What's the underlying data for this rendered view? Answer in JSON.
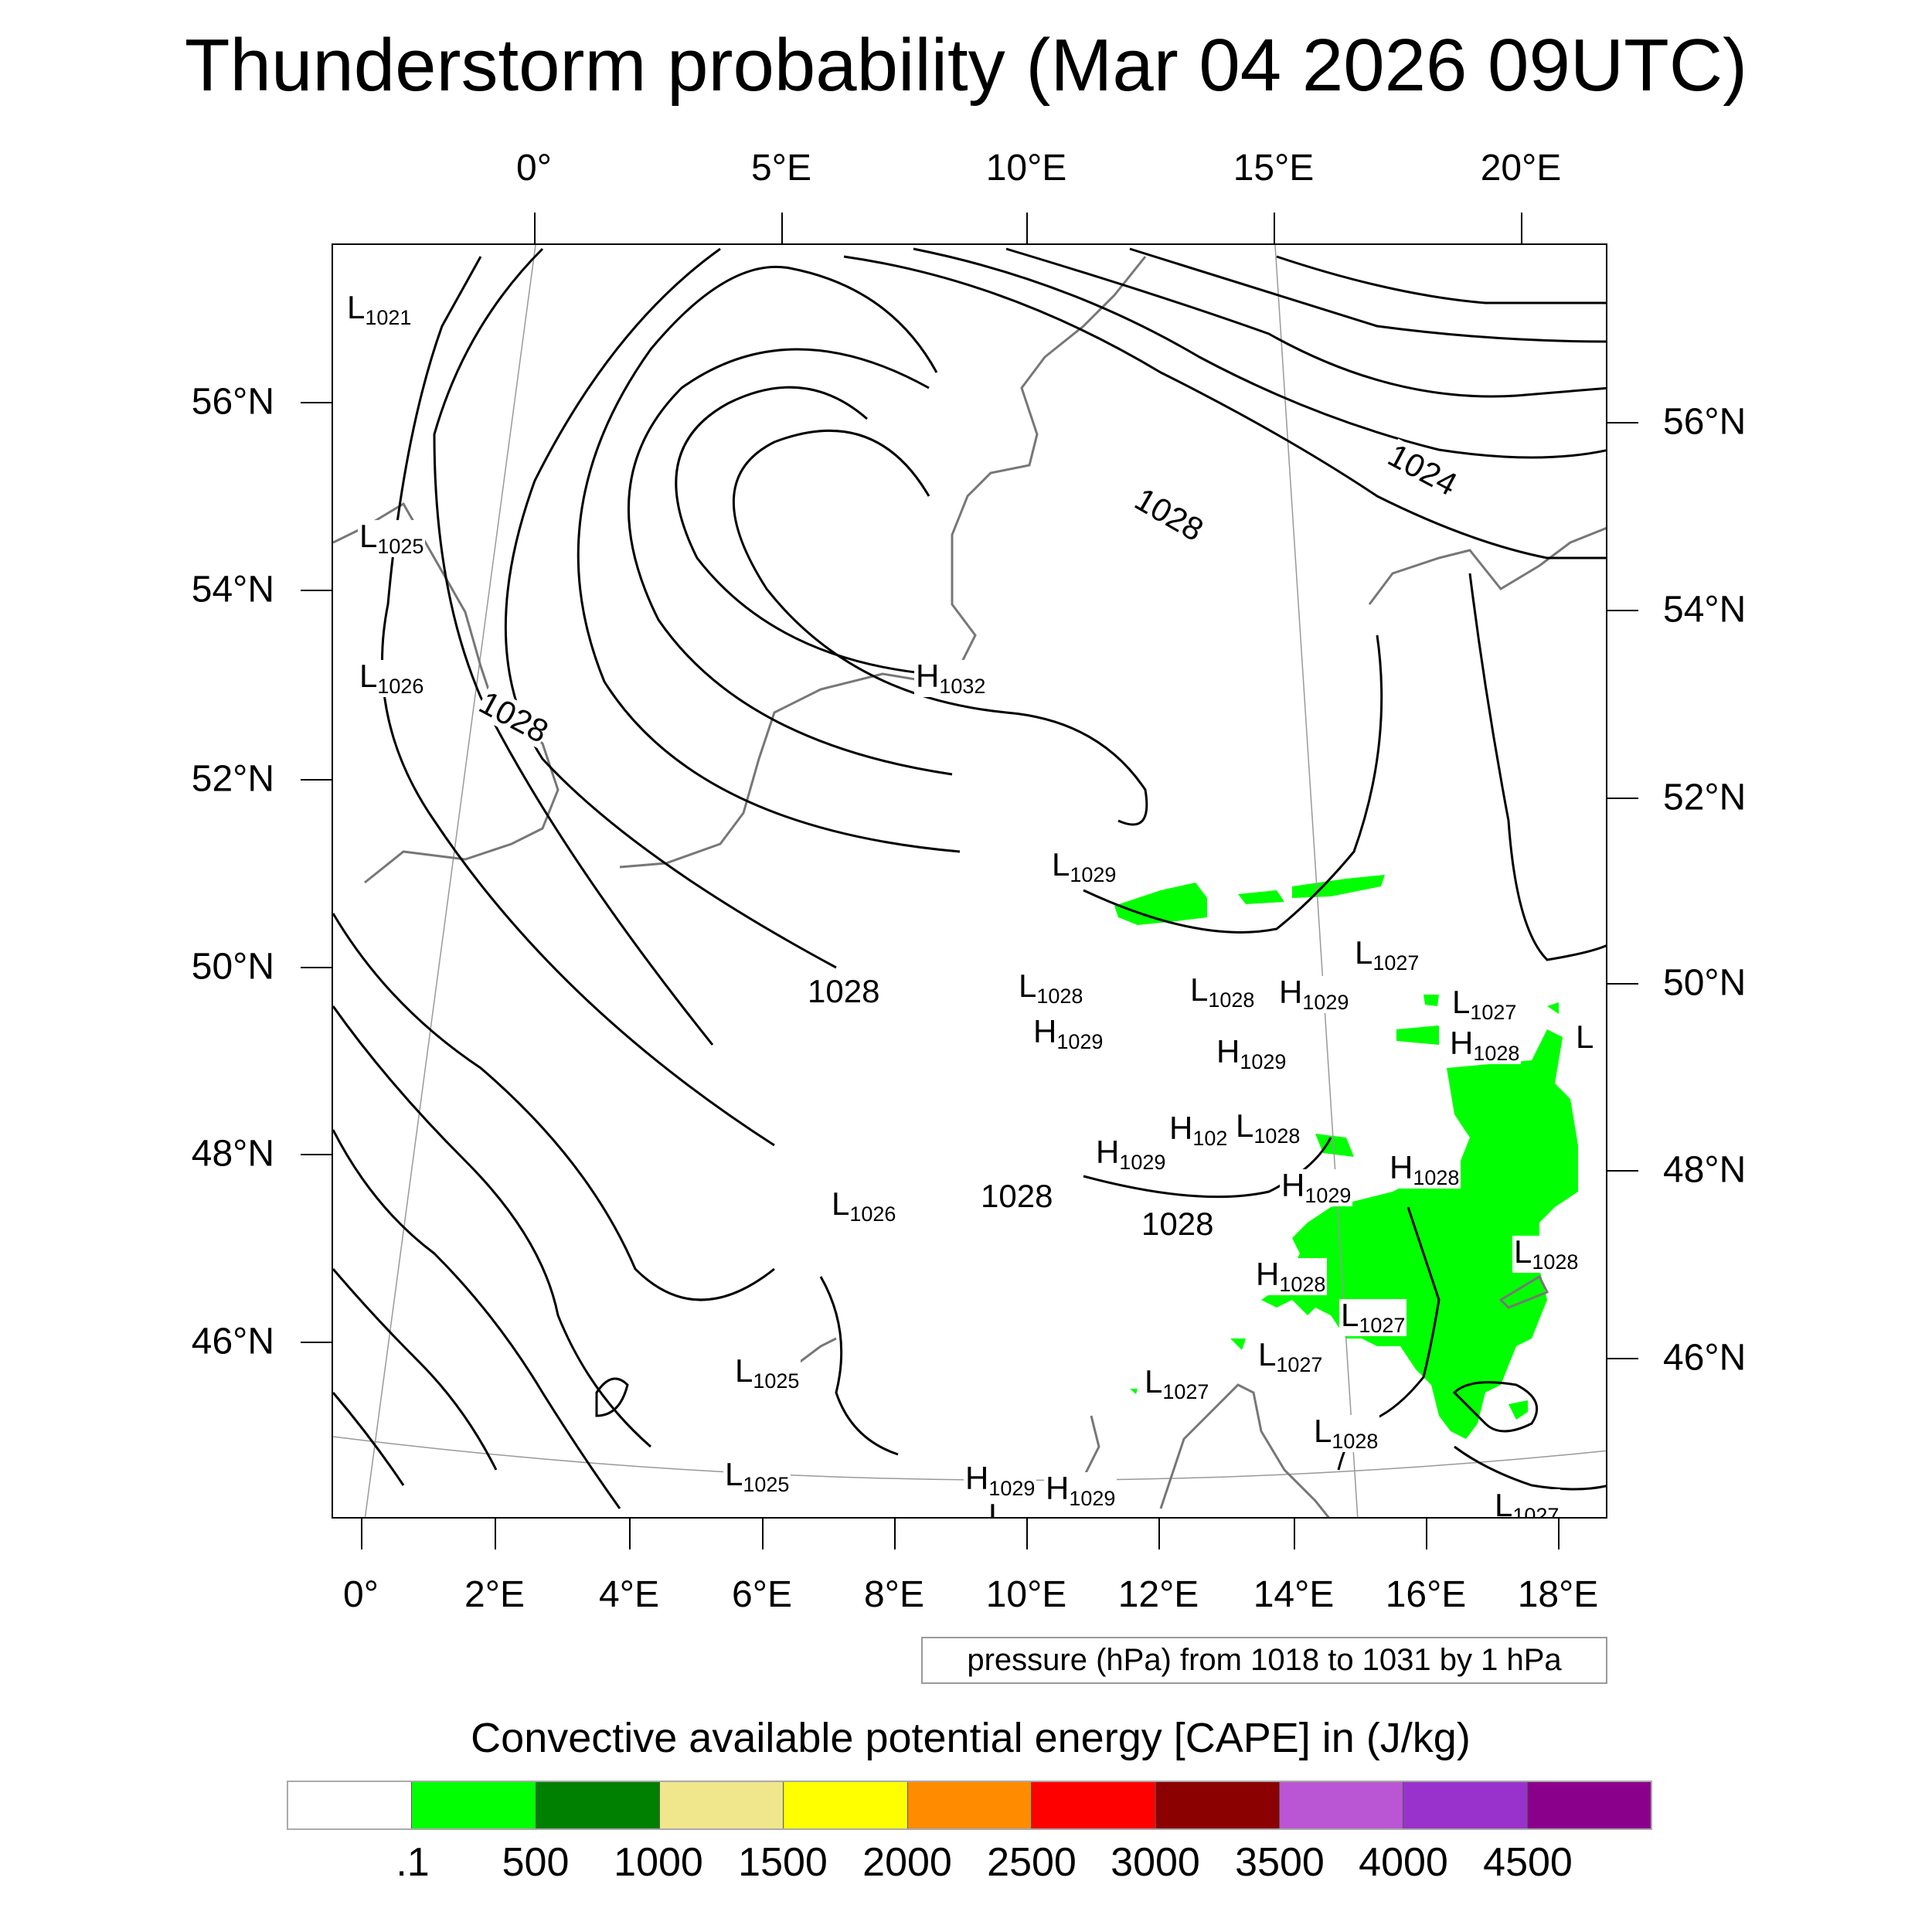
{
  "title": "Thunderstorm probability (Mar 04 2026 09UTC)",
  "top_lon_labels": [
    "0°",
    "5°E",
    "10°E",
    "15°E",
    "20°E"
  ],
  "bottom_lon_labels": [
    "0°",
    "2°E",
    "4°E",
    "6°E",
    "8°E",
    "10°E",
    "12°E",
    "14°E",
    "16°E",
    "18°E"
  ],
  "left_lat_labels": [
    "56°N",
    "54°N",
    "52°N",
    "50°N",
    "48°N",
    "46°N"
  ],
  "right_lat_labels": [
    "56°N",
    "54°N",
    "52°N",
    "50°N",
    "48°N",
    "46°N"
  ],
  "pressure_centers": [
    {
      "type": "L",
      "value": "1021"
    },
    {
      "type": "L",
      "value": "1025"
    },
    {
      "type": "L",
      "value": "1026"
    },
    {
      "type": "H",
      "value": "1032"
    },
    {
      "type": "L",
      "value": "1029"
    },
    {
      "type": "L",
      "value": "1027"
    },
    {
      "type": "L",
      "value": "1028"
    },
    {
      "type": "L",
      "value": "1028"
    },
    {
      "type": "H",
      "value": "1029"
    },
    {
      "type": "L",
      "value": "1027"
    },
    {
      "type": "H",
      "value": "1029"
    },
    {
      "type": "H",
      "value": "1029"
    },
    {
      "type": "H",
      "value": "1028"
    },
    {
      "type": "L",
      "value": ""
    },
    {
      "type": "H",
      "value": "102"
    },
    {
      "type": "L",
      "value": "1028"
    },
    {
      "type": "H",
      "value": "1029"
    },
    {
      "type": "H",
      "value": "1028"
    },
    {
      "type": "H",
      "value": "1029"
    },
    {
      "type": "L",
      "value": "1026"
    },
    {
      "type": "L",
      "value": "1028"
    },
    {
      "type": "H",
      "value": "1028"
    },
    {
      "type": "L",
      "value": "1027"
    },
    {
      "type": "L",
      "value": "1025"
    },
    {
      "type": "L",
      "value": "1027"
    },
    {
      "type": "L",
      "value": "1027"
    },
    {
      "type": "L",
      "value": "1028"
    },
    {
      "type": "L",
      "value": "1025"
    },
    {
      "type": "H",
      "value": "1029"
    },
    {
      "type": "H",
      "value": "1029"
    },
    {
      "type": "L",
      "value": "1028"
    },
    {
      "type": "L",
      "value": "1027"
    }
  ],
  "contour_labels": [
    "1028",
    "1028",
    "1024",
    "1028",
    "1028",
    "1028"
  ],
  "pressure_info": "pressure (hPa) from 1018 to 1031 by 1 hPa",
  "colorbar": {
    "title": "Convective available potential energy [CAPE] in (J/kg)",
    "colors": [
      "#ffffff",
      "#00ff00",
      "#008000",
      "#f0e68c",
      "#ffff00",
      "#ff8c00",
      "#ff0000",
      "#8b0000",
      "#ba55d3",
      "#9932cc",
      "#8b008b"
    ],
    "labels": [
      ".1",
      "500",
      "1000",
      "1500",
      "2000",
      "2500",
      "3000",
      "3500",
      "4000",
      "4500"
    ]
  }
}
